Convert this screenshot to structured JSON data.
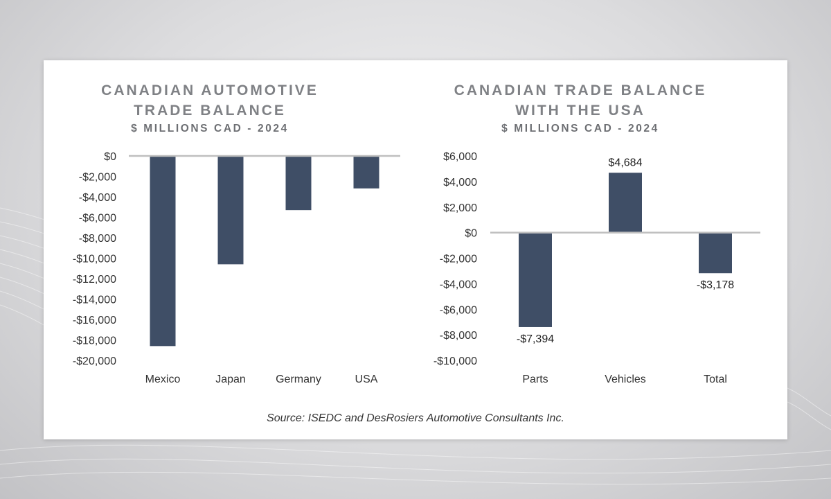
{
  "chart_data": [
    {
      "type": "bar",
      "title_line1": "CANADIAN AUTOMOTIVE",
      "title_line2": "TRADE BALANCE",
      "subtitle": "$ MILLIONS CAD - 2024",
      "categories": [
        "Mexico",
        "Japan",
        "Germany",
        "USA"
      ],
      "values": [
        -18600,
        -10600,
        -5300,
        -3178
      ],
      "ylim": [
        -20000,
        0
      ],
      "yticks": [
        0,
        -2000,
        -4000,
        -6000,
        -8000,
        -10000,
        -12000,
        -14000,
        -16000,
        -18000,
        -20000
      ],
      "ytick_labels": [
        "$0",
        "-$2,000",
        "-$4,000",
        "-$6,000",
        "-$8,000",
        "-$10,000",
        "-$12,000",
        "-$14,000",
        "-$16,000",
        "-$18,000",
        "-$20,000"
      ],
      "data_labels": [
        "",
        "",
        "",
        ""
      ],
      "bar_color": "#3f4e66"
    },
    {
      "type": "bar",
      "title_line1": "CANADIAN TRADE BALANCE",
      "title_line2": "WITH THE USA",
      "subtitle": "$ MILLIONS CAD - 2024",
      "categories": [
        "Parts",
        "Vehicles",
        "Total"
      ],
      "values": [
        -7394,
        4684,
        -3178
      ],
      "ylim": [
        -10000,
        6000
      ],
      "yticks": [
        6000,
        4000,
        2000,
        0,
        -2000,
        -4000,
        -6000,
        -8000,
        -10000
      ],
      "ytick_labels": [
        "$6,000",
        "$4,000",
        "$2,000",
        "$0",
        "-$2,000",
        "-$4,000",
        "-$6,000",
        "-$8,000",
        "-$10,000"
      ],
      "data_labels": [
        "-$7,394",
        "$4,684",
        "-$3,178"
      ],
      "bar_color": "#3f4e66"
    }
  ],
  "source": "Source: ISEDC and DesRosiers Automotive Consultants Inc."
}
